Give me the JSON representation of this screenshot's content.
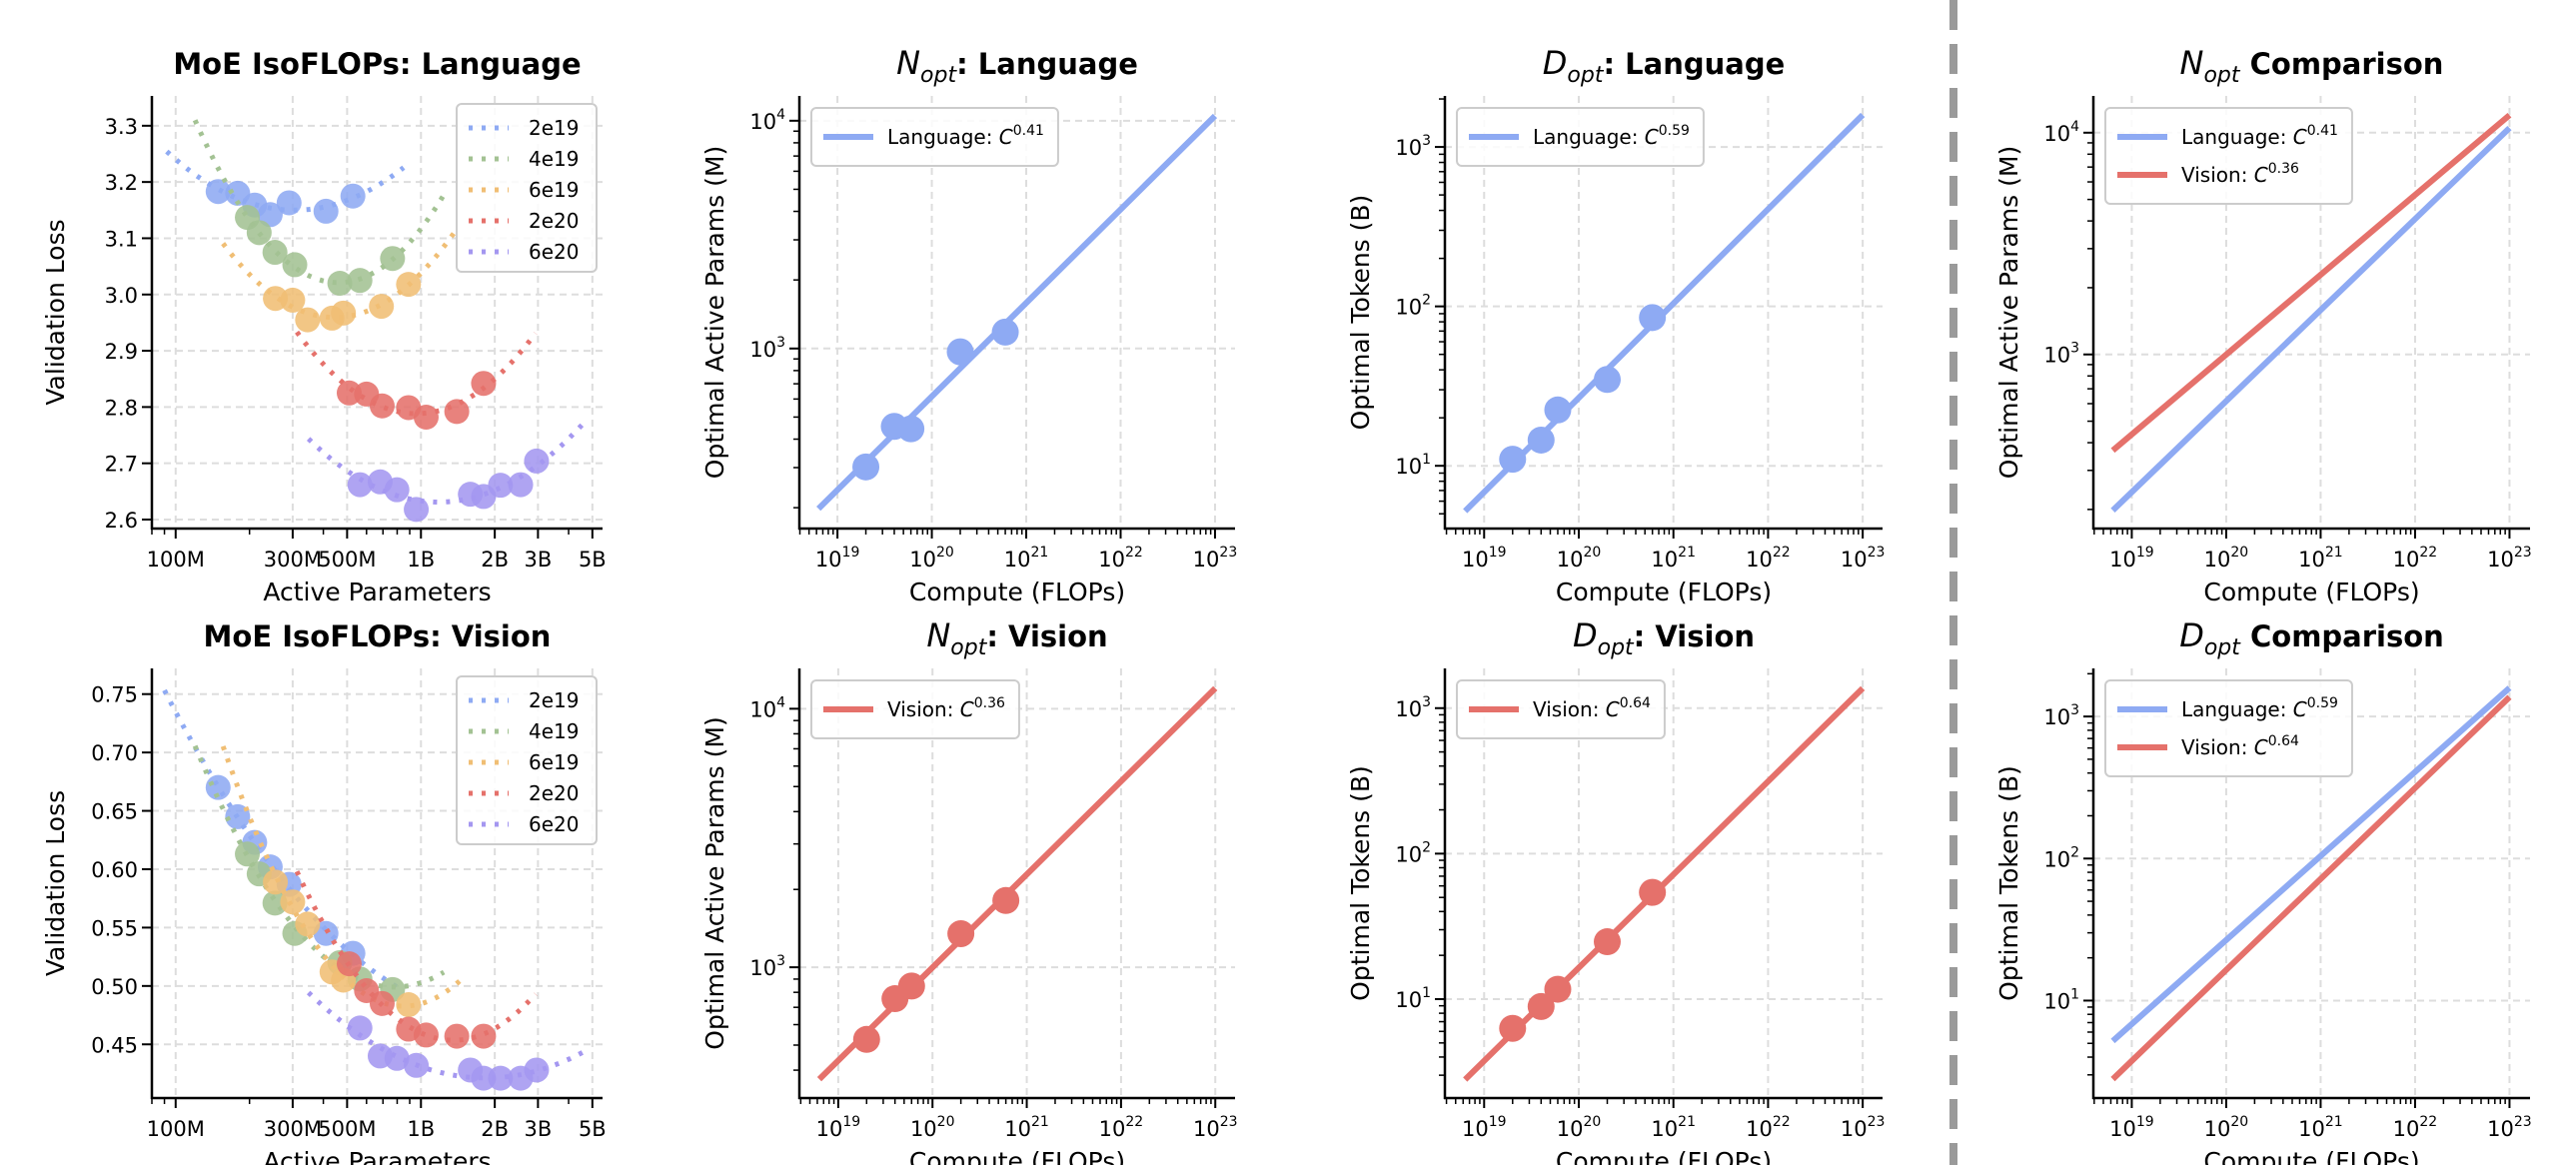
{
  "tick_base": "10",
  "colors": {
    "2e19": "#8eaaf3",
    "4e19": "#a3c293",
    "6e19": "#f0be74",
    "2e20": "#e5716b",
    "6e20": "#a497f0",
    "language": "#8eaaf3",
    "vision": "#e5716b",
    "separator": "#9a9a9a"
  },
  "chart_data": [
    {
      "type": "scatter",
      "title": {
        "text": "MoE IsoFLOPs: Language"
      },
      "xlabel": "Active Parameters",
      "ylabel": "Validation Loss",
      "xscale": "log",
      "yscale": "linear",
      "xlim": [
        80000000,
        5500000000
      ],
      "ylim": [
        2.584,
        3.353
      ],
      "xticks": [
        {
          "value": 100000000,
          "label": "100M"
        },
        {
          "value": 300000000,
          "label": "300M"
        },
        {
          "value": 500000000,
          "label": "500M"
        },
        {
          "value": 1000000000,
          "label": "1B"
        },
        {
          "value": 2000000000,
          "label": "2B"
        },
        {
          "value": 3000000000,
          "label": "3B"
        },
        {
          "value": 5000000000,
          "label": "5B"
        }
      ],
      "yticks": [
        {
          "value": 2.6,
          "label": "2.6"
        },
        {
          "value": 2.7,
          "label": "2.7"
        },
        {
          "value": 2.8,
          "label": "2.8"
        },
        {
          "value": 2.9,
          "label": "2.9"
        },
        {
          "value": 3.0,
          "label": "3.0"
        },
        {
          "value": 3.1,
          "label": "3.1"
        },
        {
          "value": 3.2,
          "label": "3.2"
        },
        {
          "value": 3.3,
          "label": "3.3"
        }
      ],
      "grid": true,
      "legend": "top-right",
      "series": [
        {
          "name": "2e19",
          "color": "#8eaaf3",
          "fit_range": [
            92000000,
            850000000
          ],
          "x": [
            149000000,
            179000000,
            210000000,
            243000000,
            290000000,
            410000000,
            528000000
          ],
          "y": [
            3.183,
            3.18,
            3.159,
            3.142,
            3.163,
            3.148,
            3.175
          ]
        },
        {
          "name": "4e19",
          "color": "#a3c293",
          "fit_range": [
            120000000,
            1240000000
          ],
          "x": [
            196000000,
            219000000,
            254000000,
            306000000,
            467000000,
            564000000,
            766000000
          ],
          "y": [
            3.137,
            3.11,
            3.075,
            3.053,
            3.02,
            3.025,
            3.064
          ]
        },
        {
          "name": "6e19",
          "color": "#f0be74",
          "fit_range": [
            156000000,
            1390000000
          ],
          "x": [
            255000000,
            300000000,
            345000000,
            434000000,
            483000000,
            690000000,
            890000000
          ],
          "y": [
            2.993,
            2.99,
            2.955,
            2.958,
            2.967,
            2.979,
            3.018
          ]
        },
        {
          "name": "2e20",
          "color": "#e5716b",
          "fit_range": [
            312000000,
            2930000000
          ],
          "x": [
            510000000,
            600000000,
            695000000,
            890000000,
            1050000000,
            1400000000,
            1800000000
          ],
          "y": [
            2.825,
            2.823,
            2.802,
            2.799,
            2.782,
            2.792,
            2.842
          ]
        },
        {
          "name": "6e20",
          "color": "#a497f0",
          "fit_range": [
            348000000,
            4750000000
          ],
          "x": [
            564000000,
            682000000,
            798000000,
            957000000,
            1590000000,
            1800000000,
            2110000000,
            2550000000,
            2960000000
          ],
          "y": [
            2.662,
            2.667,
            2.653,
            2.618,
            2.645,
            2.641,
            2.661,
            2.662,
            2.704
          ]
        }
      ]
    },
    {
      "type": "line",
      "title": {
        "symbol": "N",
        "subscript": "opt",
        "text": ": Language"
      },
      "xlabel": "Compute (FLOPs)",
      "ylabel": "Optimal Active Params (M)",
      "xscale": "log",
      "yscale": "log",
      "xlim": [
        3.95e+18,
        1.63e+23
      ],
      "ylim": [
        162,
        12850
      ],
      "xticks_exp": [
        19,
        20,
        21,
        22,
        23
      ],
      "yticks_exp": [
        3,
        4
      ],
      "grid": true,
      "legend": "top-left",
      "series": [
        {
          "name": "Language: C^0.41",
          "legend": {
            "text": "Language: ",
            "symbol": "C",
            "exponent": "0.41"
          },
          "color": "#8eaaf3",
          "fit": {
            "x": [
              6.3e+18,
              1e+23
            ],
            "y": [
              198,
              10500
            ]
          },
          "x": [
            2e+19,
            4e+19,
            6e+19,
            2e+20,
            6e+20
          ],
          "y": [
            302,
            455,
            444,
            967,
            1180
          ]
        }
      ]
    },
    {
      "type": "line",
      "title": {
        "symbol": "D",
        "subscript": "opt",
        "text": ": Language"
      },
      "xlabel": "Compute (FLOPs)",
      "ylabel": "Optimal Tokens (B)",
      "xscale": "log",
      "yscale": "log",
      "xlim": [
        3.85e+18,
        1.62e+23
      ],
      "ylim": [
        4.04,
        2090
      ],
      "xticks_exp": [
        19,
        20,
        21,
        22,
        23
      ],
      "yticks_exp": [
        1,
        2,
        3
      ],
      "grid": true,
      "legend": "top-left",
      "series": [
        {
          "name": "Language: C^0.59",
          "legend": {
            "text": "Language: ",
            "symbol": "C",
            "exponent": "0.59"
          },
          "color": "#8eaaf3",
          "fit": {
            "x": [
              6.3e+18,
              1e+23
            ],
            "y": [
              5.2,
              1590
            ]
          },
          "x": [
            2e+19,
            4e+19,
            6e+19,
            2e+20,
            6e+20
          ],
          "y": [
            11.0,
            14.5,
            22.4,
            34.8,
            85.1
          ]
        }
      ]
    },
    {
      "type": "line",
      "title": {
        "symbol": "N",
        "subscript": "opt",
        "text": " Comparison"
      },
      "xlabel": "Compute (FLOPs)",
      "ylabel": "Optimal Active Params (M)",
      "xscale": "log",
      "yscale": "log",
      "xlim": [
        3.92e+18,
        1.65e+23
      ],
      "ylim": [
        164,
        14650
      ],
      "xticks_exp": [
        19,
        20,
        21,
        22,
        23
      ],
      "yticks_exp": [
        3,
        4
      ],
      "grid": true,
      "legend": "top-left",
      "series": [
        {
          "name": "Language: C^0.41",
          "legend": {
            "text": "Language: ",
            "symbol": "C",
            "exponent": "0.41"
          },
          "color": "#8eaaf3",
          "fit": {
            "x": [
              6.3e+18,
              1e+23
            ],
            "y": [
              198,
              10500
            ]
          }
        },
        {
          "name": "Vision: C^0.36",
          "legend": {
            "text": "Vision: ",
            "symbol": "C",
            "exponent": "0.36"
          },
          "color": "#e5716b",
          "fit": {
            "x": [
              6.3e+18,
              1e+23
            ],
            "y": [
              369,
              12000
            ]
          }
        }
      ]
    },
    {
      "type": "scatter",
      "title": {
        "text": "MoE IsoFLOPs: Vision"
      },
      "xlabel": "Active Parameters",
      "ylabel": "Validation Loss",
      "xscale": "log",
      "yscale": "linear",
      "xlim": [
        80000000,
        5500000000
      ],
      "ylim": [
        0.404,
        0.772
      ],
      "xticks": [
        {
          "value": 100000000,
          "label": "100M"
        },
        {
          "value": 300000000,
          "label": "300M"
        },
        {
          "value": 500000000,
          "label": "500M"
        },
        {
          "value": 1000000000,
          "label": "1B"
        },
        {
          "value": 2000000000,
          "label": "2B"
        },
        {
          "value": 3000000000,
          "label": "3B"
        },
        {
          "value": 5000000000,
          "label": "5B"
        }
      ],
      "yticks": [
        {
          "value": 0.45,
          "label": "0.45"
        },
        {
          "value": 0.5,
          "label": "0.50"
        },
        {
          "value": 0.55,
          "label": "0.55"
        },
        {
          "value": 0.6,
          "label": "0.60"
        },
        {
          "value": 0.65,
          "label": "0.65"
        },
        {
          "value": 0.7,
          "label": "0.70"
        },
        {
          "value": 0.75,
          "label": "0.75"
        }
      ],
      "grid": true,
      "legend": "top-right",
      "series": [
        {
          "name": "2e19",
          "color": "#8eaaf3",
          "fit_range": [
            90000000,
            850000000
          ],
          "x": [
            149000000,
            179000000,
            210000000,
            243000000,
            290000000,
            410000000,
            528000000
          ],
          "y": [
            0.67,
            0.645,
            0.623,
            0.602,
            0.587,
            0.545,
            0.528
          ]
        },
        {
          "name": "4e19",
          "color": "#a3c293",
          "fit_range": [
            120000000,
            1240000000
          ],
          "x": [
            196000000,
            219000000,
            254000000,
            306000000,
            467000000,
            564000000,
            766000000
          ],
          "y": [
            0.613,
            0.596,
            0.571,
            0.545,
            0.52,
            0.506,
            0.497
          ]
        },
        {
          "name": "6e19",
          "color": "#f0be74",
          "fit_range": [
            156000000,
            1450000000
          ],
          "x": [
            255000000,
            300000000,
            345000000,
            434000000,
            483000000,
            890000000
          ],
          "y": [
            0.589,
            0.572,
            0.553,
            0.512,
            0.505,
            0.484
          ]
        },
        {
          "name": "2e20",
          "color": "#e5716b",
          "fit_range": [
            312000000,
            2930000000
          ],
          "x": [
            510000000,
            600000000,
            695000000,
            890000000,
            1050000000,
            1400000000,
            1800000000
          ],
          "y": [
            0.519,
            0.496,
            0.485,
            0.463,
            0.458,
            0.457,
            0.457
          ]
        },
        {
          "name": "6e20",
          "color": "#a497f0",
          "fit_range": [
            348000000,
            4750000000
          ],
          "x": [
            564000000,
            682000000,
            798000000,
            957000000,
            1590000000,
            1800000000,
            2110000000,
            2550000000,
            2960000000
          ],
          "y": [
            0.464,
            0.44,
            0.438,
            0.432,
            0.428,
            0.421,
            0.421,
            0.421,
            0.428
          ]
        }
      ]
    },
    {
      "type": "line",
      "title": {
        "symbol": "N",
        "subscript": "opt",
        "text": ": Vision"
      },
      "xlabel": "Compute (FLOPs)",
      "ylabel": "Optimal Active Params (M)",
      "xscale": "log",
      "yscale": "log",
      "xlim": [
        3.87e+18,
        1.62e+23
      ],
      "ylim": [
        312,
        14320
      ],
      "xticks_exp": [
        19,
        20,
        21,
        22,
        23
      ],
      "yticks_exp": [
        3,
        4
      ],
      "grid": true,
      "legend": "top-left",
      "series": [
        {
          "name": "Vision: C^0.36",
          "legend": {
            "text": "Vision: ",
            "symbol": "C",
            "exponent": "0.36"
          },
          "color": "#e5716b",
          "fit": {
            "x": [
              6.3e+18,
              1e+23
            ],
            "y": [
              369,
              12000
            ]
          },
          "x": [
            2e+19,
            4e+19,
            6e+19,
            2e+20,
            6e+20
          ],
          "y": [
            526,
            756,
            846,
            1349,
            1812
          ]
        }
      ]
    },
    {
      "type": "line",
      "title": {
        "symbol": "D",
        "subscript": "opt",
        "text": ": Vision"
      },
      "xlabel": "Compute (FLOPs)",
      "ylabel": "Optimal Tokens (B)",
      "xscale": "log",
      "yscale": "log",
      "xlim": [
        3.85e+18,
        1.62e+23
      ],
      "ylim": [
        2.09,
        1875
      ],
      "xticks_exp": [
        19,
        20,
        21,
        22,
        23
      ],
      "yticks_exp": [
        1,
        2,
        3
      ],
      "grid": true,
      "legend": "top-left",
      "series": [
        {
          "name": "Vision: C^0.64",
          "legend": {
            "text": "Vision: ",
            "symbol": "C",
            "exponent": "0.64"
          },
          "color": "#e5716b",
          "fit": {
            "x": [
              6.3e+18,
              1e+23
            ],
            "y": [
              2.8,
              1370
            ]
          },
          "x": [
            2e+19,
            4e+19,
            6e+19,
            2e+20,
            6e+20
          ],
          "y": [
            6.3,
            8.9,
            11.7,
            24.8,
            54.2
          ]
        }
      ]
    },
    {
      "type": "line",
      "title": {
        "symbol": "D",
        "subscript": "opt",
        "text": " Comparison"
      },
      "xlabel": "Compute (FLOPs)",
      "ylabel": "Optimal Tokens (B)",
      "xscale": "log",
      "yscale": "log",
      "xlim": [
        3.92e+18,
        1.65e+23
      ],
      "ylim": [
        2.06,
        2180
      ],
      "xticks_exp": [
        19,
        20,
        21,
        22,
        23
      ],
      "yticks_exp": [
        1,
        2,
        3
      ],
      "grid": true,
      "legend": "top-left",
      "series": [
        {
          "name": "Language: C^0.59",
          "legend": {
            "text": "Language: ",
            "symbol": "C",
            "exponent": "0.59"
          },
          "color": "#8eaaf3",
          "fit": {
            "x": [
              6.3e+18,
              1e+23
            ],
            "y": [
              5.2,
              1590
            ]
          }
        },
        {
          "name": "Vision: C^0.64",
          "legend": {
            "text": "Vision: ",
            "symbol": "C",
            "exponent": "0.64"
          },
          "color": "#e5716b",
          "fit": {
            "x": [
              6.3e+18,
              1e+23
            ],
            "y": [
              2.8,
              1370
            ]
          }
        }
      ]
    }
  ]
}
